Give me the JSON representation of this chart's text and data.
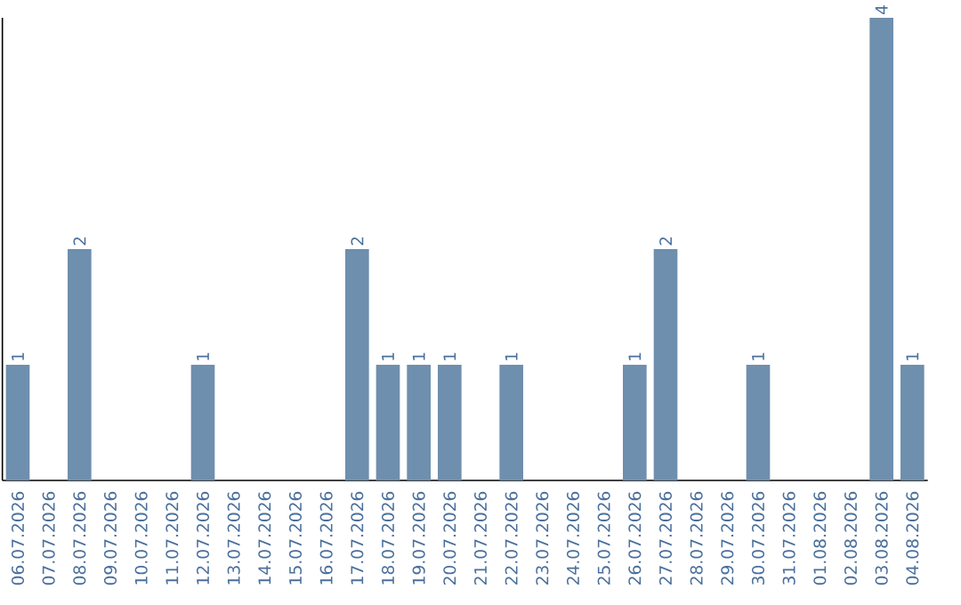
{
  "chart_data": {
    "type": "bar",
    "categories": [
      "06.07.2026",
      "07.07.2026",
      "08.07.2026",
      "09.07.2026",
      "10.07.2026",
      "11.07.2026",
      "12.07.2026",
      "13.07.2026",
      "14.07.2026",
      "15.07.2026",
      "16.07.2026",
      "17.07.2026",
      "18.07.2026",
      "19.07.2026",
      "20.07.2026",
      "21.07.2026",
      "22.07.2026",
      "23.07.2026",
      "24.07.2026",
      "25.07.2026",
      "26.07.2026",
      "27.07.2026",
      "28.07.2026",
      "29.07.2026",
      "30.07.2026",
      "31.07.2026",
      "01.08.2026",
      "02.08.2026",
      "03.08.2026",
      "04.08.2026"
    ],
    "values": [
      1,
      0,
      2,
      0,
      0,
      0,
      1,
      0,
      0,
      0,
      0,
      2,
      1,
      1,
      1,
      0,
      1,
      0,
      0,
      0,
      1,
      2,
      0,
      0,
      1,
      0,
      0,
      0,
      4,
      1
    ],
    "value_labels": [
      "1",
      null,
      "2",
      null,
      null,
      null,
      "1",
      null,
      null,
      null,
      null,
      "2",
      "1",
      "1",
      "1",
      null,
      "1",
      null,
      null,
      null,
      "1",
      "2",
      null,
      null,
      "1",
      null,
      null,
      null,
      "4",
      "1"
    ],
    "color": "#6e8fad"
  }
}
